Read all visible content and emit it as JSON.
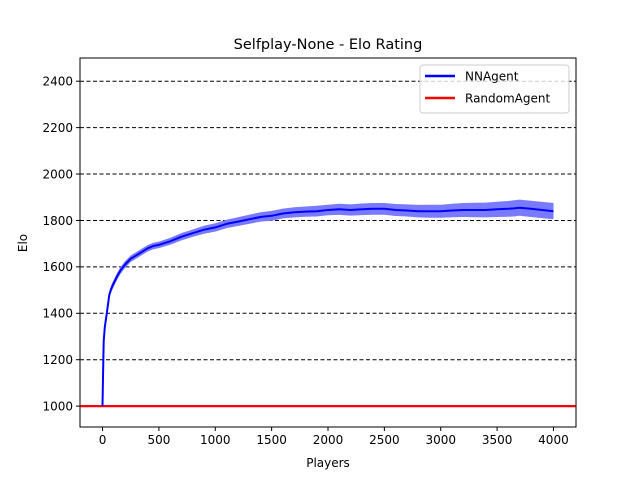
{
  "chart_data": {
    "type": "line",
    "title": "Selfplay-None - Elo Rating",
    "xlabel": "Players",
    "ylabel": "Elo",
    "xlim": [
      -200,
      4200
    ],
    "ylim": [
      910,
      2500
    ],
    "xticks": [
      0,
      500,
      1000,
      1500,
      2000,
      2500,
      3000,
      3500,
      4000
    ],
    "yticks": [
      1000,
      1200,
      1400,
      1600,
      1800,
      2000,
      2200,
      2400
    ],
    "grid": "horizontal dashed at y ticks",
    "legend_position": "top-right",
    "series": [
      {
        "name": "NNAgent",
        "color": "#0000ff",
        "band_color": "#7a7aff",
        "x": [
          0,
          5,
          10,
          20,
          40,
          60,
          80,
          100,
          130,
          160,
          200,
          250,
          300,
          350,
          400,
          450,
          500,
          600,
          700,
          800,
          900,
          1000,
          1100,
          1200,
          1300,
          1400,
          1500,
          1600,
          1700,
          1800,
          1900,
          2000,
          2100,
          2200,
          2300,
          2400,
          2500,
          2600,
          2700,
          2800,
          2900,
          3000,
          3100,
          3200,
          3300,
          3400,
          3500,
          3600,
          3650,
          3700,
          3800,
          3900,
          4000
        ],
        "y": [
          1000,
          1150,
          1280,
          1340,
          1410,
          1480,
          1510,
          1530,
          1560,
          1585,
          1610,
          1635,
          1650,
          1665,
          1680,
          1690,
          1695,
          1710,
          1730,
          1745,
          1760,
          1770,
          1785,
          1795,
          1805,
          1815,
          1820,
          1830,
          1835,
          1838,
          1840,
          1845,
          1848,
          1845,
          1848,
          1850,
          1850,
          1845,
          1843,
          1840,
          1840,
          1840,
          1843,
          1845,
          1845,
          1845,
          1848,
          1850,
          1852,
          1855,
          1850,
          1845,
          1840
        ],
        "band_halfwidth": [
          0,
          5,
          10,
          12,
          14,
          15,
          15,
          15,
          15,
          15,
          15,
          14,
          14,
          14,
          14,
          14,
          14,
          15,
          16,
          16,
          17,
          18,
          18,
          19,
          20,
          20,
          21,
          21,
          22,
          22,
          23,
          23,
          24,
          24,
          25,
          25,
          25,
          26,
          26,
          27,
          28,
          28,
          29,
          30,
          31,
          32,
          33,
          34,
          35,
          35,
          35,
          35,
          35
        ]
      },
      {
        "name": "RandomAgent",
        "color": "#ff0000",
        "y_constant": 1000
      }
    ]
  }
}
